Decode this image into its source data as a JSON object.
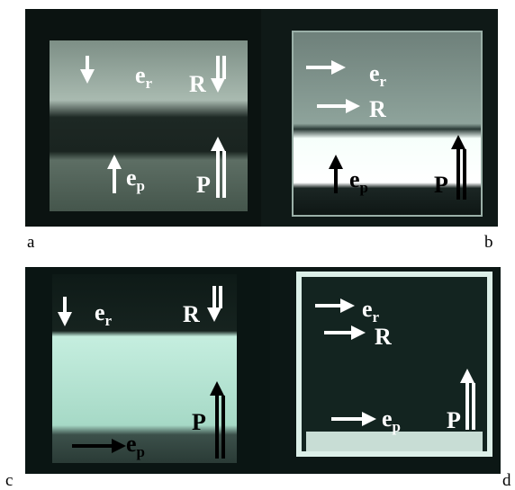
{
  "panels": [
    {
      "letter": "a",
      "labels": [
        {
          "base": "e",
          "sub": "r"
        },
        {
          "base": "R"
        },
        {
          "base": "e",
          "sub": "p"
        },
        {
          "base": "P"
        }
      ]
    },
    {
      "letter": "b",
      "labels": [
        {
          "base": "e",
          "sub": "r"
        },
        {
          "base": "R"
        },
        {
          "base": "e",
          "sub": "p"
        },
        {
          "base": "P"
        }
      ]
    },
    {
      "letter": "c",
      "labels": [
        {
          "base": "e",
          "sub": "r"
        },
        {
          "base": "R"
        },
        {
          "base": "e",
          "sub": "p"
        },
        {
          "base": "P"
        }
      ]
    },
    {
      "letter": "d",
      "labels": [
        {
          "base": "e",
          "sub": "r"
        },
        {
          "base": "R"
        },
        {
          "base": "e",
          "sub": "p"
        },
        {
          "base": "P"
        }
      ]
    }
  ]
}
